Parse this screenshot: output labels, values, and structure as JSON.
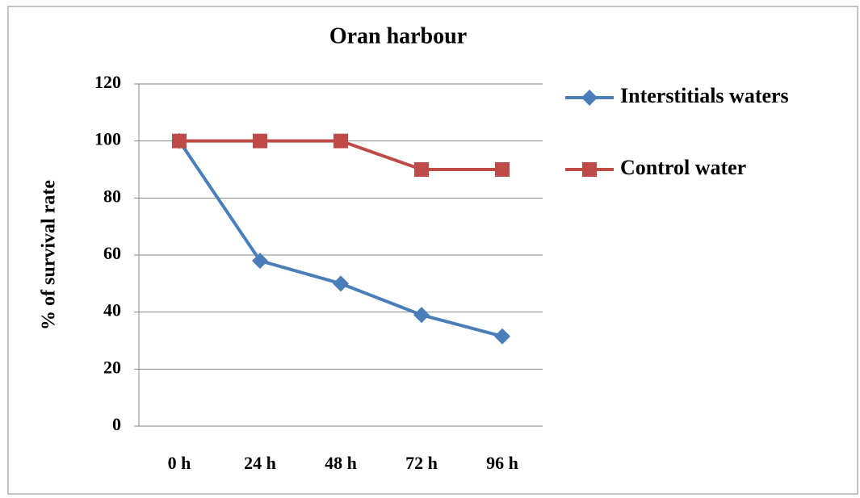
{
  "chart_data": {
    "type": "line",
    "title": "Oran harbour",
    "y_label": "% of survival rate",
    "categories": [
      "0 h",
      "24 h",
      "48 h",
      "72 h",
      "96 h"
    ],
    "series": [
      {
        "name": "Interstitials waters",
        "color": "#4a7ebb",
        "marker": "diamond",
        "values": [
          100,
          58,
          50,
          39,
          31.5
        ]
      },
      {
        "name": "Control water",
        "color": "#be4b48",
        "marker": "square",
        "values": [
          100,
          100,
          100,
          90,
          90
        ]
      }
    ],
    "ylim": [
      0,
      120
    ],
    "yticks": [
      0,
      20,
      40,
      60,
      80,
      100,
      120
    ],
    "grid": true,
    "legend": "right"
  }
}
